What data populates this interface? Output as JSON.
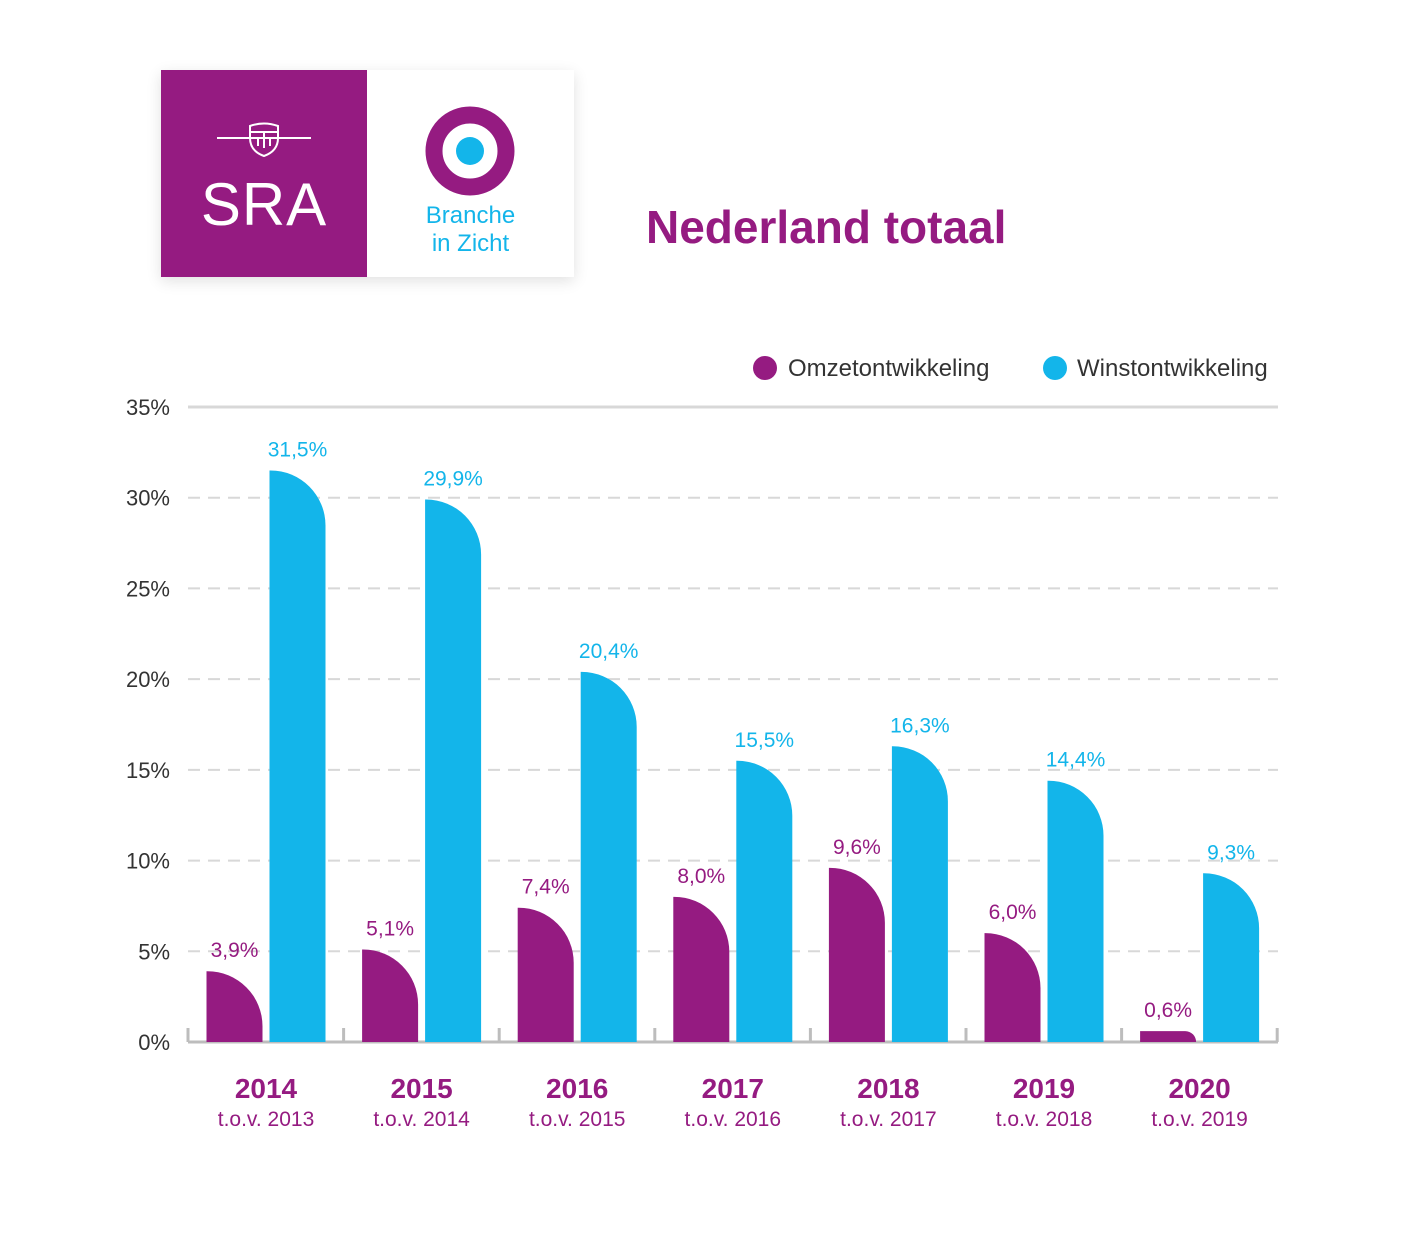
{
  "logo": {
    "sra_text": "SRA",
    "bic_line1": "Branche",
    "bic_line2": "in Zicht",
    "emblem_icon": "shield-icon",
    "target_icon": "target-icon"
  },
  "colors": {
    "omzet": "#951B81",
    "winst": "#13B5EA",
    "grid": "#d8d8d8",
    "axis": "#bdbdbd"
  },
  "chart_data": {
    "type": "bar",
    "title": "Nederland totaal",
    "categories": [
      "2014",
      "2015",
      "2016",
      "2017",
      "2018",
      "2019",
      "2020"
    ],
    "category_sublabels": [
      "t.o.v. 2013",
      "t.o.v. 2014",
      "t.o.v. 2015",
      "t.o.v. 2016",
      "t.o.v. 2017",
      "t.o.v. 2018",
      "t.o.v. 2019"
    ],
    "series": [
      {
        "name": "Omzetontwikkeling",
        "color": "#951B81",
        "values": [
          3.9,
          5.1,
          7.4,
          8.0,
          9.6,
          6.0,
          0.6
        ],
        "labels": [
          "3,9%",
          "5,1%",
          "7,4%",
          "8,0%",
          "9,6%",
          "6,0%",
          "0,6%"
        ]
      },
      {
        "name": "Winstontwikkeling",
        "color": "#13B5EA",
        "values": [
          31.5,
          29.9,
          20.4,
          15.5,
          16.3,
          14.4,
          9.3
        ],
        "labels": [
          "31,5%",
          "29,9%",
          "20,4%",
          "15,5%",
          "16,3%",
          "14,4%",
          "9,3%"
        ]
      }
    ],
    "yticks": [
      0,
      5,
      10,
      15,
      20,
      25,
      30,
      35
    ],
    "ytick_labels": [
      "0%",
      "5%",
      "10%",
      "15%",
      "20%",
      "25%",
      "30%",
      "35%"
    ],
    "ylim": [
      0,
      35
    ],
    "grid": true,
    "legend_position": "top-right"
  }
}
